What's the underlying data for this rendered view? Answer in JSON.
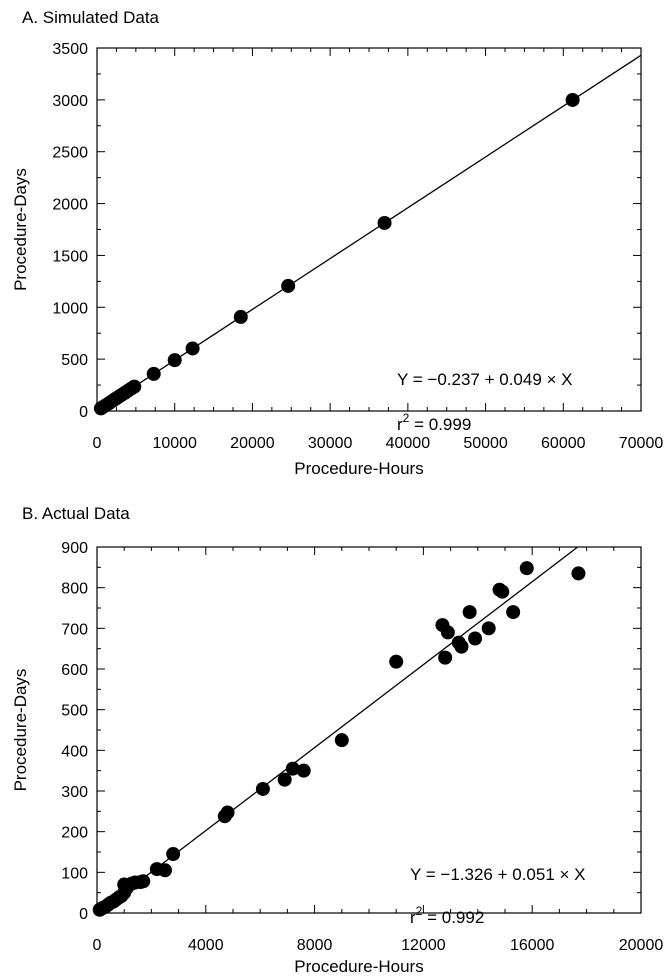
{
  "chart_data": [
    {
      "type": "scatter",
      "title": "A. Simulated Data",
      "xlabel": "Procedure-Hours",
      "ylabel": "Procedure-Days",
      "xlim": [
        0,
        70000
      ],
      "ylim": [
        0,
        3500
      ],
      "x_ticks": [
        "0",
        "10000",
        "20000",
        "30000",
        "40000",
        "50000",
        "60000",
        "70000"
      ],
      "y_ticks": [
        "0",
        "500",
        "1000",
        "1500",
        "2000",
        "2500",
        "3000",
        "3500"
      ],
      "grid": false,
      "fit_line": {
        "intercept": -0.237,
        "slope": 0.049
      },
      "equation": "Y = −0.237 + 0.049 × X",
      "r2_prefix": "r",
      "r2_sup": "2",
      "r2_value": " = 0.999",
      "points": [
        {
          "x": 500,
          "y": 25
        },
        {
          "x": 800,
          "y": 40
        },
        {
          "x": 1200,
          "y": 58
        },
        {
          "x": 1600,
          "y": 78
        },
        {
          "x": 2000,
          "y": 98
        },
        {
          "x": 2400,
          "y": 118
        },
        {
          "x": 2800,
          "y": 137
        },
        {
          "x": 3200,
          "y": 157
        },
        {
          "x": 3600,
          "y": 176
        },
        {
          "x": 4000,
          "y": 196
        },
        {
          "x": 4400,
          "y": 216
        },
        {
          "x": 4800,
          "y": 235
        },
        {
          "x": 7300,
          "y": 358
        },
        {
          "x": 10000,
          "y": 490
        },
        {
          "x": 12300,
          "y": 603
        },
        {
          "x": 18500,
          "y": 907
        },
        {
          "x": 24600,
          "y": 1206
        },
        {
          "x": 37000,
          "y": 1813
        },
        {
          "x": 61200,
          "y": 2999
        }
      ]
    },
    {
      "type": "scatter",
      "title": "B. Actual Data",
      "xlabel": "Procedure-Hours",
      "ylabel": "Procedure-Days",
      "xlim": [
        0,
        20000
      ],
      "ylim": [
        0,
        900
      ],
      "x_ticks": [
        "0",
        "4000",
        "8000",
        "12000",
        "16000",
        "20000"
      ],
      "y_ticks": [
        "0",
        "100",
        "200",
        "300",
        "400",
        "500",
        "600",
        "700",
        "800",
        "900"
      ],
      "grid": false,
      "fit_line": {
        "intercept": -1.326,
        "slope": 0.051
      },
      "equation": "Y = −1.326 + 0.051 × X",
      "r2_prefix": "r",
      "r2_sup": "2",
      "r2_value": " = 0.992",
      "points": [
        {
          "x": 100,
          "y": 8
        },
        {
          "x": 200,
          "y": 12
        },
        {
          "x": 300,
          "y": 15
        },
        {
          "x": 400,
          "y": 20
        },
        {
          "x": 500,
          "y": 25
        },
        {
          "x": 600,
          "y": 28
        },
        {
          "x": 700,
          "y": 33
        },
        {
          "x": 800,
          "y": 38
        },
        {
          "x": 900,
          "y": 42
        },
        {
          "x": 1000,
          "y": 50
        },
        {
          "x": 1000,
          "y": 70
        },
        {
          "x": 1100,
          "y": 62
        },
        {
          "x": 1200,
          "y": 70
        },
        {
          "x": 1300,
          "y": 73
        },
        {
          "x": 1400,
          "y": 75
        },
        {
          "x": 1600,
          "y": 76
        },
        {
          "x": 1700,
          "y": 78
        },
        {
          "x": 2200,
          "y": 108
        },
        {
          "x": 2500,
          "y": 105
        },
        {
          "x": 2800,
          "y": 145
        },
        {
          "x": 4700,
          "y": 238
        },
        {
          "x": 4800,
          "y": 247
        },
        {
          "x": 6100,
          "y": 305
        },
        {
          "x": 6900,
          "y": 328
        },
        {
          "x": 7200,
          "y": 355
        },
        {
          "x": 7600,
          "y": 350
        },
        {
          "x": 9000,
          "y": 425
        },
        {
          "x": 11000,
          "y": 618
        },
        {
          "x": 12700,
          "y": 708
        },
        {
          "x": 12800,
          "y": 628
        },
        {
          "x": 12900,
          "y": 690
        },
        {
          "x": 13300,
          "y": 665
        },
        {
          "x": 13400,
          "y": 655
        },
        {
          "x": 13700,
          "y": 740
        },
        {
          "x": 13900,
          "y": 675
        },
        {
          "x": 14400,
          "y": 700
        },
        {
          "x": 14800,
          "y": 795
        },
        {
          "x": 14900,
          "y": 790
        },
        {
          "x": 15300,
          "y": 740
        },
        {
          "x": 15800,
          "y": 848
        },
        {
          "x": 17700,
          "y": 835
        }
      ]
    }
  ]
}
